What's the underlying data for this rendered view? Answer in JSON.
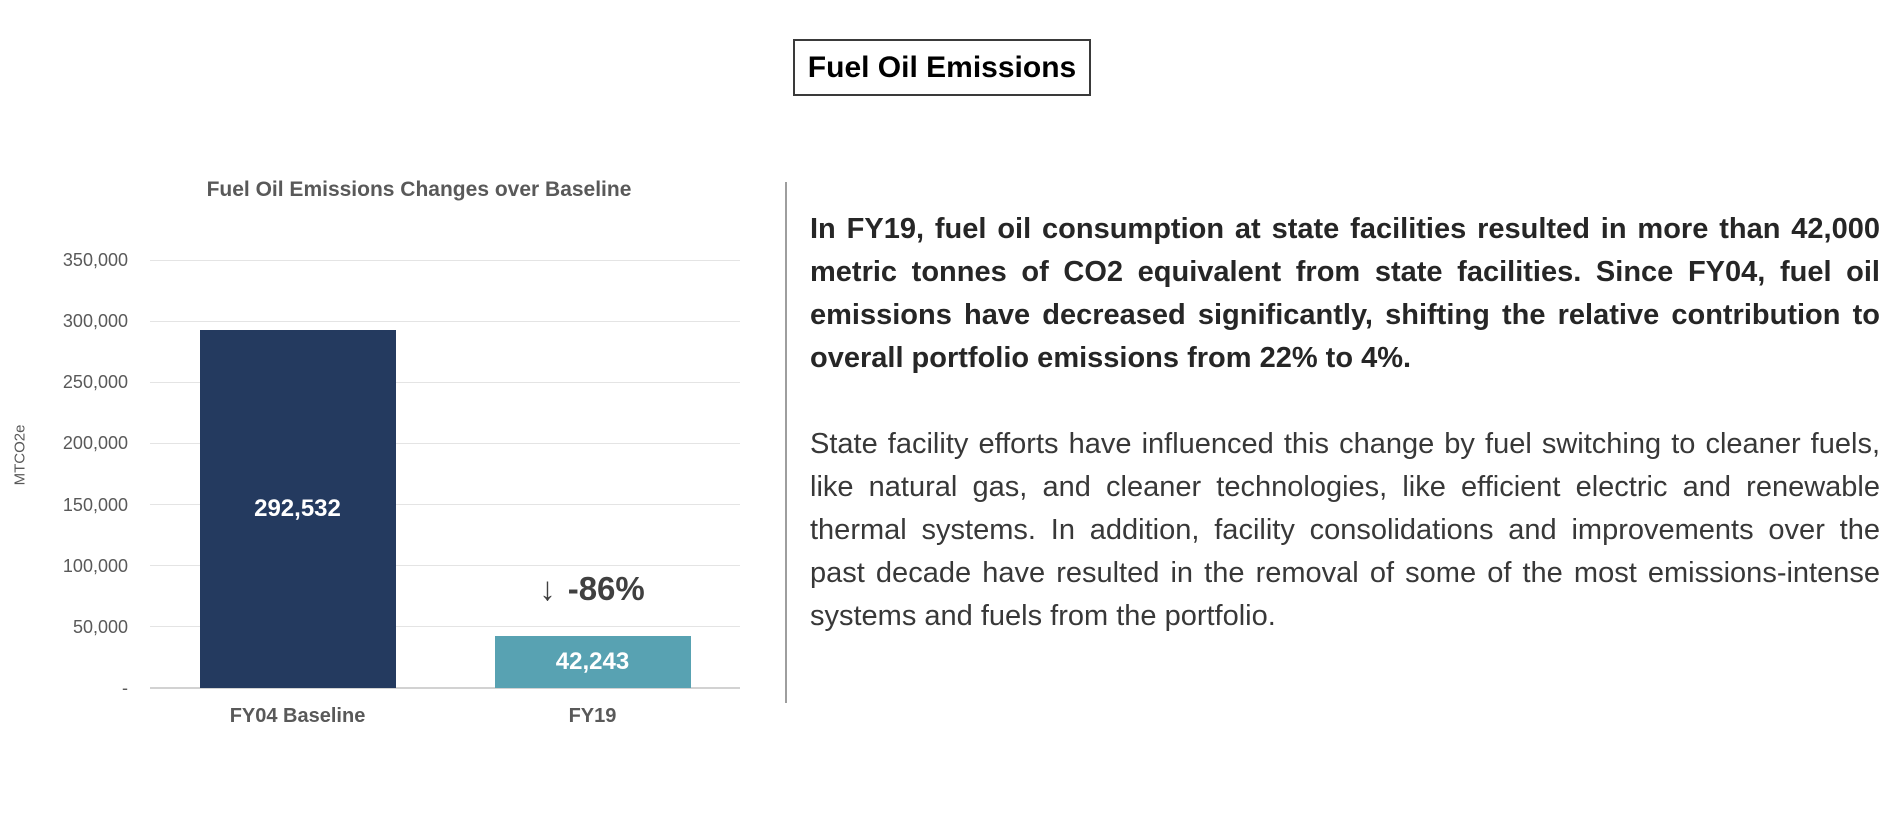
{
  "header": {
    "title": "Fuel Oil Emissions"
  },
  "chart_data": {
    "type": "bar",
    "title": "Fuel Oil Emissions Changes over Baseline",
    "ylabel": "MTCO2e",
    "categories": [
      "FY04 Baseline",
      "FY19"
    ],
    "values": [
      292532,
      42243
    ],
    "value_labels": [
      "292,532",
      "42,243"
    ],
    "bar_colors": [
      "#243A5F",
      "#58A2B2"
    ],
    "ylim": [
      0,
      350000
    ],
    "ytick_interval": 50000,
    "ytick_labels": [
      "-",
      "50,000",
      "100,000",
      "150,000",
      "200,000",
      "250,000",
      "300,000",
      "350,000"
    ],
    "grid": true,
    "legend": "none",
    "annotation": {
      "arrow_icon": "↓",
      "label": "-86%",
      "target_category": "FY19"
    }
  },
  "text_panel": {
    "paragraph_bold": "In FY19, fuel oil consumption at state facilities resulted in more than 42,000 metric tonnes of CO2 equivalent from state facilities. Since FY04, fuel oil emissions have decreased significantly, shifting the relative contribution to overall portfolio emissions from 22% to 4%.",
    "paragraph_regular": "State facility efforts have influenced this change by fuel switching to cleaner fuels, like natural gas, and cleaner technologies, like efficient electric and renewable thermal systems. In addition, facility consolidations and improvements over the past decade have resulted in the removal of some of the most emissions-intense systems and fuels from the portfolio."
  },
  "colors": {
    "bar_navy": "#243A5F",
    "bar_teal": "#58A2B2",
    "chart_text_gray": "#595959",
    "annotation_gray": "#404040",
    "bar_value_text": "#FFFFFF",
    "gridline": "#E4E4E4",
    "divider": "#9E9E9E",
    "title_box_border": "#3A3A3A"
  }
}
